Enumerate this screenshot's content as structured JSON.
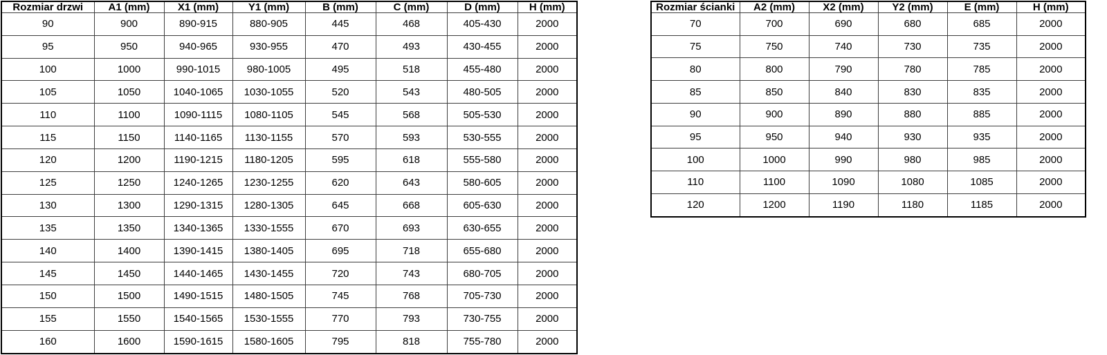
{
  "tables": {
    "doors": {
      "headers": [
        "Rozmiar drzwi",
        "A1 (mm)",
        "X1 (mm)",
        "Y1 (mm)",
        "B (mm)",
        "C (mm)",
        "D (mm)",
        "H (mm)"
      ],
      "rows": [
        [
          "90",
          "900",
          "890-915",
          "880-905",
          "445",
          "468",
          "405-430",
          "2000"
        ],
        [
          "95",
          "950",
          "940-965",
          "930-955",
          "470",
          "493",
          "430-455",
          "2000"
        ],
        [
          "100",
          "1000",
          "990-1015",
          "980-1005",
          "495",
          "518",
          "455-480",
          "2000"
        ],
        [
          "105",
          "1050",
          "1040-1065",
          "1030-1055",
          "520",
          "543",
          "480-505",
          "2000"
        ],
        [
          "110",
          "1100",
          "1090-1115",
          "1080-1105",
          "545",
          "568",
          "505-530",
          "2000"
        ],
        [
          "115",
          "1150",
          "1140-1165",
          "1130-1155",
          "570",
          "593",
          "530-555",
          "2000"
        ],
        [
          "120",
          "1200",
          "1190-1215",
          "1180-1205",
          "595",
          "618",
          "555-580",
          "2000"
        ],
        [
          "125",
          "1250",
          "1240-1265",
          "1230-1255",
          "620",
          "643",
          "580-605",
          "2000"
        ],
        [
          "130",
          "1300",
          "1290-1315",
          "1280-1305",
          "645",
          "668",
          "605-630",
          "2000"
        ],
        [
          "135",
          "1350",
          "1340-1365",
          "1330-1555",
          "670",
          "693",
          "630-655",
          "2000"
        ],
        [
          "140",
          "1400",
          "1390-1415",
          "1380-1405",
          "695",
          "718",
          "655-680",
          "2000"
        ],
        [
          "145",
          "1450",
          "1440-1465",
          "1430-1455",
          "720",
          "743",
          "680-705",
          "2000"
        ],
        [
          "150",
          "1500",
          "1490-1515",
          "1480-1505",
          "745",
          "768",
          "705-730",
          "2000"
        ],
        [
          "155",
          "1550",
          "1540-1565",
          "1530-1555",
          "770",
          "793",
          "730-755",
          "2000"
        ],
        [
          "160",
          "1600",
          "1590-1615",
          "1580-1605",
          "795",
          "818",
          "755-780",
          "2000"
        ]
      ]
    },
    "walls": {
      "headers": [
        "Rozmiar ścianki",
        "A2 (mm)",
        "X2 (mm)",
        "Y2 (mm)",
        "E (mm)",
        "H (mm)"
      ],
      "rows": [
        [
          "70",
          "700",
          "690",
          "680",
          "685",
          "2000"
        ],
        [
          "75",
          "750",
          "740",
          "730",
          "735",
          "2000"
        ],
        [
          "80",
          "800",
          "790",
          "780",
          "785",
          "2000"
        ],
        [
          "85",
          "850",
          "840",
          "830",
          "835",
          "2000"
        ],
        [
          "90",
          "900",
          "890",
          "880",
          "885",
          "2000"
        ],
        [
          "95",
          "950",
          "940",
          "930",
          "935",
          "2000"
        ],
        [
          "100",
          "1000",
          "990",
          "980",
          "985",
          "2000"
        ],
        [
          "110",
          "1100",
          "1090",
          "1080",
          "1085",
          "2000"
        ],
        [
          "120",
          "1200",
          "1190",
          "1180",
          "1185",
          "2000"
        ]
      ]
    }
  },
  "colors": {
    "background": "#ffffff",
    "border_outer": "#000000",
    "border_inner": "#3d3d3d",
    "text": "#000000"
  }
}
